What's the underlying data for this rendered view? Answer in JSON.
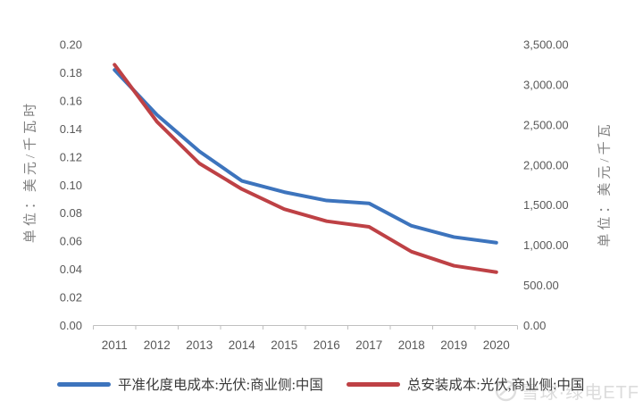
{
  "chart_data": {
    "type": "line",
    "x": [
      2011,
      2012,
      2013,
      2014,
      2015,
      2016,
      2017,
      2018,
      2019,
      2020
    ],
    "series": [
      {
        "name": "平准化度电成本:光伏:商业侧:中国",
        "axis": "left",
        "color": "#3D74BD",
        "values": [
          0.182,
          0.15,
          0.124,
          0.103,
          0.095,
          0.089,
          0.087,
          0.071,
          0.063,
          0.059
        ]
      },
      {
        "name": "总安装成本:光伏,商业侧:中国",
        "axis": "right",
        "color": "#BE4145",
        "values": [
          3250,
          2540,
          2020,
          1700,
          1450,
          1300,
          1230,
          920,
          745,
          665
        ]
      }
    ],
    "left_axis": {
      "title": "单位：美元/千瓦时",
      "min": 0,
      "max": 0.2,
      "tick_step": 0.02,
      "tick_labels": [
        "0.00",
        "0.02",
        "0.04",
        "0.06",
        "0.08",
        "0.10",
        "0.12",
        "0.14",
        "0.16",
        "0.18",
        "0.20"
      ]
    },
    "right_axis": {
      "title": "单位：美元/千瓦",
      "min": 0,
      "max": 3500,
      "tick_step": 500,
      "tick_labels": [
        "0.00",
        "500.00",
        "1,000.00",
        "1,500.00",
        "2,000.00",
        "2,500.00",
        "3,000.00",
        "3,500.00"
      ]
    },
    "axis_color": "#BFBFBF",
    "grid": false,
    "legend_position": "bottom"
  },
  "watermark": {
    "text": "雪球·绿电ETF",
    "logo_icon": "snowball-circle-icon",
    "color": "#D6D6D6"
  }
}
